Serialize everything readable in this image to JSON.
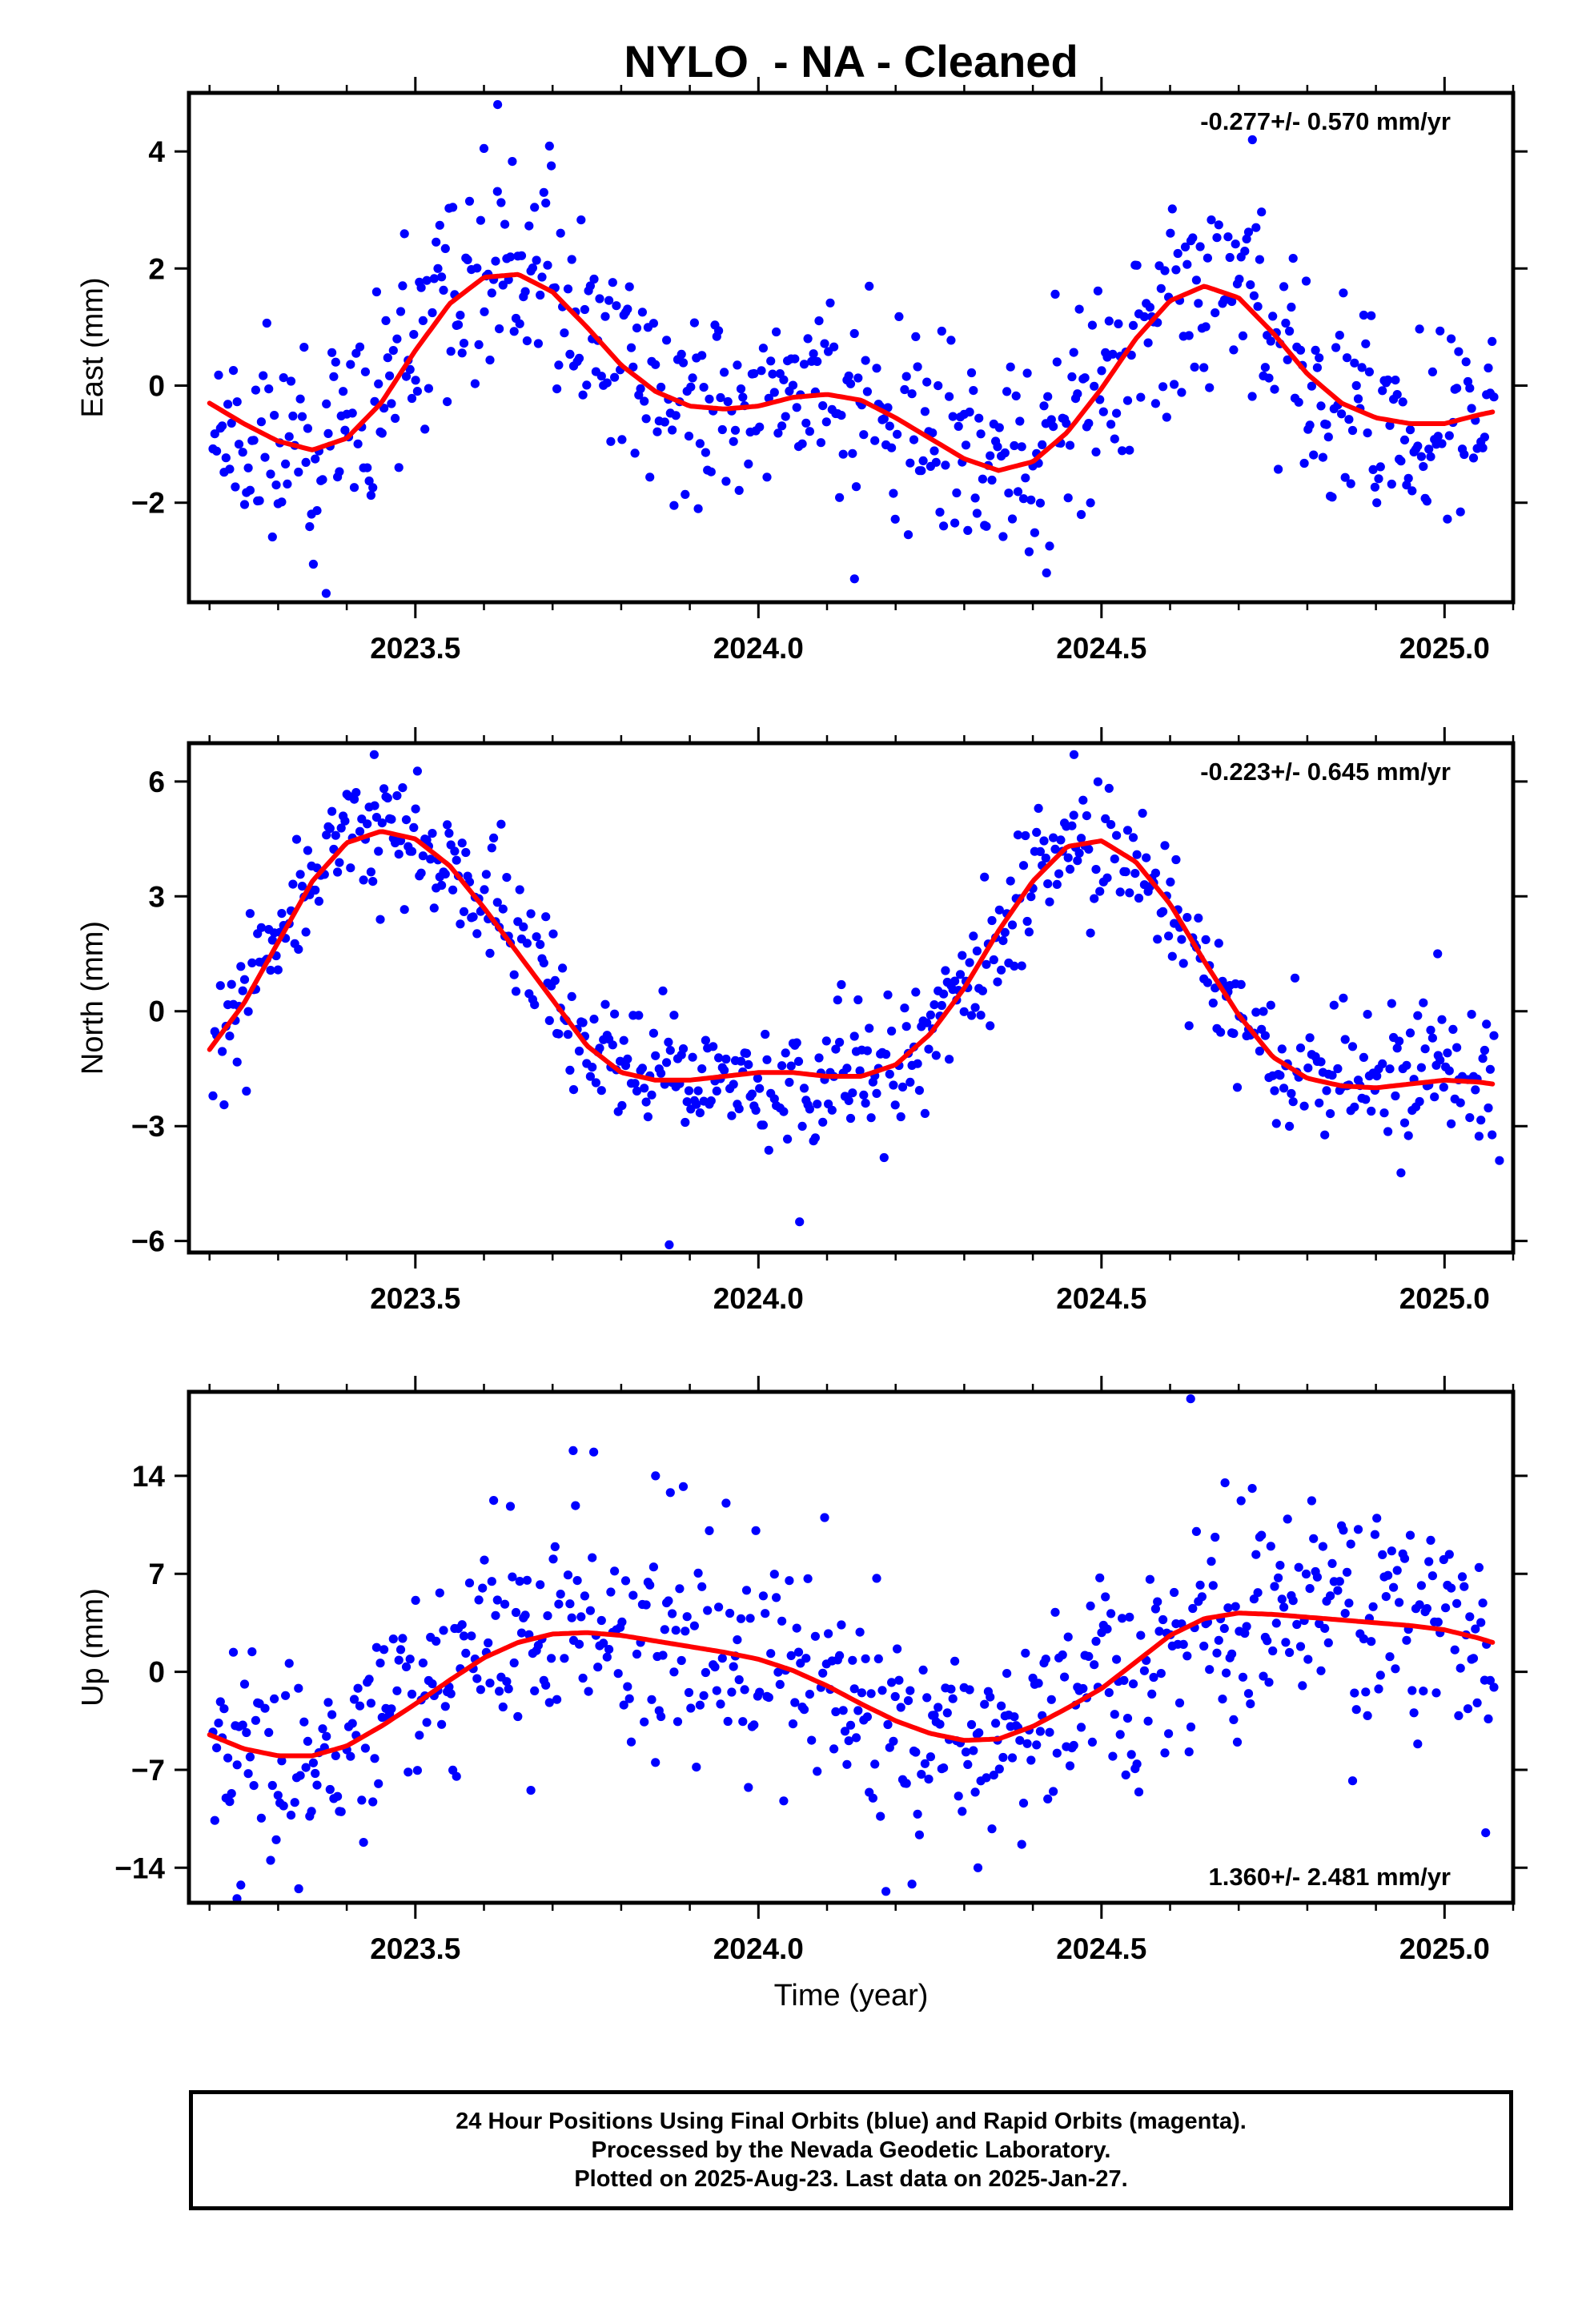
{
  "chart_data": {
    "title": "NYLO  - NA - Cleaned",
    "xlabel": "Time (year)",
    "panels": [
      {
        "type": "scatter",
        "ylabel": "East (mm)",
        "rate_label": "-0.277+/- 0.570 mm/yr",
        "xlim": [
          2023.17,
          2025.1
        ],
        "ylim": [
          -3.7,
          5.0
        ],
        "x_ticks": [
          2023.5,
          2024.0,
          2024.5,
          2025.0
        ],
        "x_tick_labels": [
          "2023.5",
          "2024.0",
          "2024.5",
          "2025.0"
        ],
        "y_ticks": [
          -2,
          0,
          2,
          4
        ],
        "y_tick_labels": [
          "−2",
          "0",
          "2",
          "4"
        ],
        "series": [
          {
            "kind": "points",
            "color": "#0000ff",
            "seed": 11,
            "noise": 0.85,
            "outliers": [
              [
                2023.62,
                4.8
              ],
              [
                2023.6,
                4.05
              ],
              [
                2024.72,
                4.2
              ],
              [
                2024.42,
                -3.2
              ],
              [
                2024.14,
                -3.3
              ],
              [
                2023.37,
                -3.55
              ]
            ]
          },
          {
            "kind": "model",
            "color": "#ff0000",
            "x": [
              2023.2,
              2023.25,
              2023.3,
              2023.35,
              2023.4,
              2023.45,
              2023.5,
              2023.55,
              2023.6,
              2023.65,
              2023.7,
              2023.75,
              2023.8,
              2023.85,
              2023.9,
              2023.95,
              2024.0,
              2024.05,
              2024.1,
              2024.15,
              2024.2,
              2024.25,
              2024.3,
              2024.35,
              2024.4,
              2024.45,
              2024.5,
              2024.55,
              2024.6,
              2024.65,
              2024.7,
              2024.75,
              2024.8,
              2024.85,
              2024.9,
              2024.95,
              2025.0,
              2025.05,
              2025.07
            ],
            "y": [
              -0.3,
              -0.65,
              -0.95,
              -1.1,
              -0.9,
              -0.3,
              0.6,
              1.4,
              1.85,
              1.9,
              1.6,
              1.0,
              0.35,
              -0.1,
              -0.35,
              -0.4,
              -0.35,
              -0.2,
              -0.15,
              -0.25,
              -0.55,
              -0.9,
              -1.25,
              -1.45,
              -1.3,
              -0.8,
              -0.05,
              0.8,
              1.45,
              1.7,
              1.5,
              0.9,
              0.2,
              -0.3,
              -0.55,
              -0.65,
              -0.65,
              -0.5,
              -0.45
            ]
          }
        ]
      },
      {
        "type": "scatter",
        "ylabel": "North (mm)",
        "rate_label": "-0.223+/- 0.645 mm/yr",
        "xlim": [
          2023.17,
          2025.1
        ],
        "ylim": [
          -6.3,
          7.0
        ],
        "x_ticks": [
          2023.5,
          2024.0,
          2024.5,
          2025.0
        ],
        "x_tick_labels": [
          "2023.5",
          "2024.0",
          "2024.5",
          "2025.0"
        ],
        "y_ticks": [
          -6,
          -3,
          0,
          3,
          6
        ],
        "y_tick_labels": [
          "−6",
          "−3",
          "0",
          "3",
          "6"
        ],
        "series": [
          {
            "kind": "points",
            "color": "#0000ff",
            "seed": 23,
            "noise": 0.85,
            "outliers": [
              [
                2023.87,
                -6.1
              ],
              [
                2024.06,
                -5.5
              ],
              [
                2023.44,
                6.7
              ],
              [
                2024.46,
                6.7
              ],
              [
                2024.99,
                1.5
              ],
              [
                2025.08,
                -3.9
              ]
            ]
          },
          {
            "kind": "model",
            "color": "#ff0000",
            "x": [
              2023.2,
              2023.25,
              2023.3,
              2023.35,
              2023.4,
              2023.45,
              2023.5,
              2023.55,
              2023.6,
              2023.65,
              2023.7,
              2023.75,
              2023.8,
              2023.85,
              2023.9,
              2023.95,
              2024.0,
              2024.05,
              2024.1,
              2024.15,
              2024.2,
              2024.25,
              2024.3,
              2024.35,
              2024.4,
              2024.45,
              2024.5,
              2024.55,
              2024.6,
              2024.65,
              2024.7,
              2024.75,
              2024.8,
              2024.85,
              2024.9,
              2024.95,
              2025.0,
              2025.05,
              2025.07
            ],
            "y": [
              -1.0,
              0.2,
              1.8,
              3.4,
              4.4,
              4.7,
              4.5,
              3.8,
              2.7,
              1.5,
              0.3,
              -0.9,
              -1.6,
              -1.8,
              -1.8,
              -1.7,
              -1.6,
              -1.6,
              -1.7,
              -1.7,
              -1.4,
              -0.6,
              0.6,
              2.1,
              3.4,
              4.3,
              4.45,
              3.9,
              2.8,
              1.3,
              -0.1,
              -1.2,
              -1.75,
              -1.95,
              -2.0,
              -1.9,
              -1.8,
              -1.85,
              -1.9
            ]
          }
        ]
      },
      {
        "type": "scatter",
        "ylabel": "Up (mm)",
        "rate_label": "1.360+/- 2.481 mm/yr",
        "xlim": [
          2023.17,
          2025.1
        ],
        "ylim": [
          -16.5,
          20.0
        ],
        "x_ticks": [
          2023.5,
          2024.0,
          2024.5,
          2025.0
        ],
        "x_tick_labels": [
          "2023.5",
          "2024.0",
          "2024.5",
          "2025.0"
        ],
        "y_ticks": [
          -14,
          -7,
          0,
          7,
          14
        ],
        "y_tick_labels": [
          "−14",
          "−7",
          "0",
          "7",
          "14"
        ],
        "series": [
          {
            "kind": "points",
            "color": "#0000ff",
            "seed": 37,
            "noise": 3.9,
            "outliers": [
              [
                2024.63,
                19.5
              ],
              [
                2023.73,
                15.8
              ],
              [
                2023.76,
                15.7
              ],
              [
                2023.24,
                -16.2
              ],
              [
                2023.33,
                -15.5
              ],
              [
                2024.32,
                -14.0
              ],
              [
                2025.06,
                -11.5
              ],
              [
                2024.68,
                13.5
              ],
              [
                2023.85,
                14.0
              ]
            ]
          },
          {
            "kind": "model",
            "color": "#ff0000",
            "x": [
              2023.2,
              2023.25,
              2023.3,
              2023.35,
              2023.4,
              2023.45,
              2023.5,
              2023.55,
              2023.6,
              2023.65,
              2023.7,
              2023.75,
              2023.8,
              2023.85,
              2023.9,
              2023.95,
              2024.0,
              2024.05,
              2024.1,
              2024.15,
              2024.2,
              2024.25,
              2024.3,
              2024.35,
              2024.4,
              2024.45,
              2024.5,
              2024.55,
              2024.6,
              2024.65,
              2024.7,
              2024.75,
              2024.8,
              2024.85,
              2024.9,
              2024.95,
              2025.0,
              2025.05,
              2025.07
            ],
            "y": [
              -4.5,
              -5.5,
              -6.0,
              -6.0,
              -5.3,
              -3.9,
              -2.3,
              -0.6,
              1.0,
              2.1,
              2.7,
              2.8,
              2.6,
              2.2,
              1.8,
              1.4,
              0.9,
              0.1,
              -1.0,
              -2.3,
              -3.5,
              -4.4,
              -4.9,
              -4.8,
              -3.9,
              -2.6,
              -1.2,
              0.7,
              2.6,
              3.8,
              4.2,
              4.1,
              3.9,
              3.7,
              3.5,
              3.3,
              3.0,
              2.4,
              2.1
            ]
          }
        ]
      }
    ]
  },
  "footer": {
    "line1": "24 Hour Positions Using Final Orbits (blue) and Rapid Orbits (magenta).",
    "line2": "Processed by the Nevada Geodetic Laboratory.",
    "line3": "Plotted on 2025-Aug-23. Last data on 2025-Jan-27."
  }
}
